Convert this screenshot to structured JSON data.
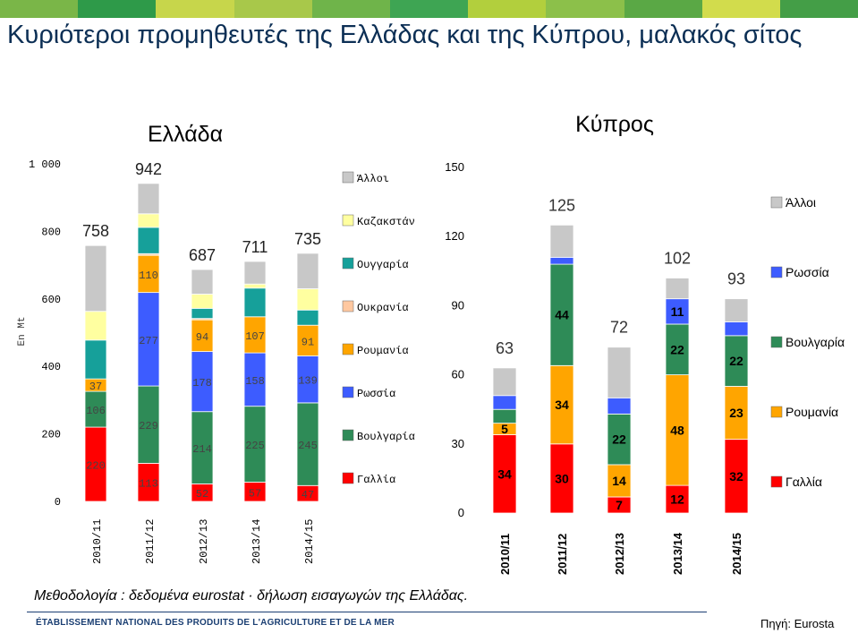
{
  "page": {
    "title": "Κυριότεροι προμηθευτές της Ελλάδας και της Κύπρου, μαλακός σίτος",
    "footnote": "Μεθοδολογία : δεδομένα eurostat · δήλωση εισαγωγών της Ελλάδας.",
    "organization": "ÉTABLISSEMENT NATIONAL DES PRODUITS DE L'AGRICULTURE ET DE LA MER",
    "source": "Πηγή: Eurosta",
    "strip_colors": [
      "#7ab648",
      "#2e9a49",
      "#c7d64b",
      "#a8c84a",
      "#6fb44a",
      "#3ea553",
      "#b2cf3d",
      "#8cc04a",
      "#5aa845",
      "#d2dc4c",
      "#449e47"
    ]
  },
  "chart_data": [
    {
      "type": "bar",
      "stacked": true,
      "title": "Ελλάδα",
      "ylabel": "En Mt",
      "ylim": [
        0,
        1000
      ],
      "yticks": [
        "0",
        "200",
        "400",
        "600",
        "800",
        "1 000"
      ],
      "categories": [
        "2010/11",
        "2011/12",
        "2012/13",
        "2013/14",
        "2014/15"
      ],
      "totals": [
        758,
        942,
        687,
        711,
        735
      ],
      "series": [
        {
          "name": "Γαλλία",
          "color": "#ff0000",
          "values": [
            220,
            113,
            52,
            57,
            47
          ],
          "labels": [
            "220",
            "113",
            "52",
            "57",
            "47"
          ]
        },
        {
          "name": "Βουλγαρία",
          "color": "#2e8b57",
          "values": [
            106,
            229,
            214,
            225,
            245
          ],
          "labels": [
            "106",
            "229",
            "214",
            "225",
            "245"
          ]
        },
        {
          "name": "Ρωσσία",
          "color": "#3d5cff",
          "values": [
            0,
            277,
            178,
            158,
            139
          ],
          "labels": [
            "",
            "277",
            "178",
            "158",
            "139"
          ]
        },
        {
          "name": "Ρουμανία",
          "color": "#ffa500",
          "values": [
            37,
            110,
            94,
            107,
            91
          ],
          "labels": [
            "37",
            "110",
            "94",
            "107",
            "91"
          ]
        },
        {
          "name": "Ουκρανία",
          "color": "#ffc8a0",
          "values": [
            0,
            5,
            4,
            0,
            0
          ],
          "labels": [
            "",
            "",
            "",
            "",
            ""
          ]
        },
        {
          "name": "Ουγγαρία",
          "color": "#16a09a",
          "values": [
            115,
            78,
            30,
            85,
            45
          ],
          "labels": [
            "",
            "",
            "",
            "",
            ""
          ]
        },
        {
          "name": "Καζακστάν",
          "color": "#ffffa0",
          "values": [
            85,
            40,
            42,
            12,
            63
          ],
          "labels": [
            "",
            "",
            "",
            "",
            ""
          ]
        },
        {
          "name": "Άλλοι",
          "color": "#c8c8c8",
          "values": [
            195,
            90,
            73,
            67,
            105
          ],
          "labels": [
            "",
            "",
            "",
            "",
            ""
          ]
        }
      ]
    },
    {
      "type": "bar",
      "stacked": true,
      "title": "Κύπρος",
      "ylim": [
        0,
        150
      ],
      "yticks": [
        "0",
        "30",
        "60",
        "90",
        "120",
        "150"
      ],
      "categories": [
        "2010/11",
        "2011/12",
        "2012/13",
        "2013/14",
        "2014/15"
      ],
      "totals": [
        63,
        125,
        72,
        102,
        93
      ],
      "series": [
        {
          "name": "Γαλλία",
          "color": "#ff0000",
          "values": [
            34,
            30,
            7,
            12,
            32
          ],
          "labels": [
            "34",
            "30",
            "7",
            "12",
            "32"
          ]
        },
        {
          "name": "Ρουμανία",
          "color": "#ffa500",
          "values": [
            5,
            34,
            14,
            48,
            23
          ],
          "labels": [
            "5",
            "34",
            "14",
            "48",
            "23"
          ]
        },
        {
          "name": "Βουλγαρία",
          "color": "#2e8b57",
          "values": [
            6,
            44,
            22,
            22,
            22
          ],
          "labels": [
            "",
            "44",
            "22",
            "22",
            "22"
          ]
        },
        {
          "name": "Ρωσσία",
          "color": "#3d5cff",
          "values": [
            6,
            3,
            7,
            11,
            6
          ],
          "labels": [
            "",
            "",
            "",
            "11",
            ""
          ]
        },
        {
          "name": "Άλλοι",
          "color": "#c8c8c8",
          "values": [
            12,
            14,
            22,
            9,
            10
          ],
          "labels": [
            "",
            "",
            "",
            "",
            ""
          ]
        }
      ]
    }
  ]
}
